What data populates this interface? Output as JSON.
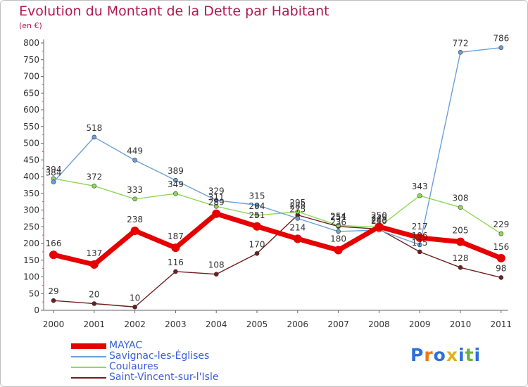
{
  "title": "Evolution du Montant de la Dette par Habitant",
  "unit": "(en €)",
  "logo": {
    "text": "Proxiti",
    "colors": [
      "#2e6fd8",
      "#e87b14",
      "#2e6fd8",
      "#e2b022",
      "#2e6fd8",
      "#6db33f",
      "#2e6fd8"
    ]
  },
  "chart_data": {
    "type": "line",
    "title": "Evolution du Montant de la Dette par Habitant",
    "ylabel": "(en €)",
    "x": [
      "2000",
      "2001",
      "2002",
      "2003",
      "2004",
      "2005",
      "2006",
      "2007",
      "2008",
      "2009",
      "2010",
      "2011"
    ],
    "yticks": [
      0,
      50,
      100,
      150,
      200,
      250,
      300,
      350,
      400,
      450,
      500,
      550,
      600,
      650,
      700,
      750,
      800
    ],
    "ylim": [
      0,
      800
    ],
    "grid": false,
    "legend_position": "bottom-left",
    "series": [
      {
        "name": "MAYAC",
        "color": "#e60000",
        "values": [
          166,
          137,
          238,
          187,
          289,
          251,
          214,
          180,
          250,
          217,
          205,
          156
        ],
        "labels": [
          "166",
          "137",
          "238",
          "187",
          "289",
          "251",
          "214",
          "180",
          "250",
          "217",
          "205",
          "156"
        ]
      },
      {
        "name": "Savignac-les-Églises",
        "color": "#6c9fd8",
        "values": [
          384,
          518,
          449,
          389,
          329,
          315,
          275,
          236,
          240,
          196,
          772,
          786
        ],
        "labels": [
          "384",
          "518",
          "449",
          "389",
          "329",
          "315",
          "275",
          "236",
          "240",
          "196",
          "772",
          "786"
        ]
      },
      {
        "name": "Coulaures",
        "color": "#8fd858",
        "values": [
          394,
          372,
          333,
          349,
          311,
          284,
          295,
          254,
          249,
          343,
          308,
          229
        ],
        "labels": [
          "394",
          "372",
          "333",
          "349",
          "311",
          "284",
          "295",
          "254",
          "249",
          "343",
          "308",
          "229"
        ]
      },
      {
        "name": "Saint-Vincent-sur-l'Isle",
        "color": "#6e1e1e",
        "values": [
          29,
          20,
          10,
          116,
          108,
          170,
          285,
          251,
          243,
          175,
          128,
          98
        ],
        "labels": [
          "29",
          "20",
          "10",
          "116",
          "108",
          "170",
          "285",
          "251",
          "243",
          "175",
          "128",
          "98"
        ]
      }
    ]
  }
}
